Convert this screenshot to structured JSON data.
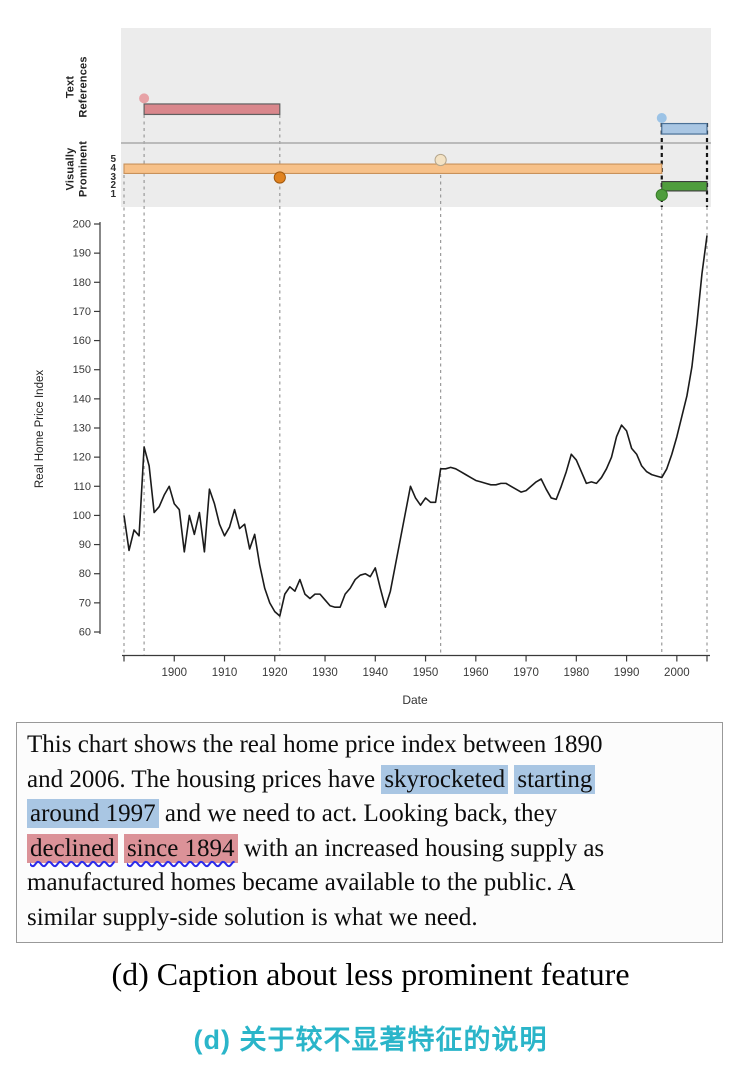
{
  "figure": {
    "panel": {
      "row1_label_line1": "Text",
      "row1_label_line2": "References",
      "row2_label_line1": "Visually",
      "row2_label_line2": "Prominent",
      "rank_labels": [
        "5",
        "4",
        "3",
        "2",
        "1"
      ]
    },
    "caption_en": "(d) Caption about less prominent feature",
    "caption_zh": "(d) 关于较不显著特征的说明"
  },
  "chart_data": {
    "type": "line",
    "title": "",
    "xlabel": "Date",
    "ylabel": "Real Home Price Index",
    "xlim": [
      1890,
      2006
    ],
    "ylim": [
      60,
      200
    ],
    "xticks": [
      1900,
      1910,
      1920,
      1930,
      1940,
      1950,
      1960,
      1970,
      1980,
      1990,
      2000
    ],
    "yticks": [
      60,
      70,
      80,
      90,
      100,
      110,
      120,
      130,
      140,
      150,
      160,
      170,
      180,
      190,
      200
    ],
    "grid": false,
    "series": [
      {
        "name": "Real Home Price Index",
        "x_start": 1890,
        "x_end": 2006,
        "values": [
          100,
          88,
          95,
          93,
          123.5,
          117,
          101,
          103,
          107,
          110,
          104,
          102,
          87.5,
          100,
          93.5,
          101,
          87.5,
          109,
          104,
          97,
          93,
          96,
          102,
          95.5,
          97,
          88.5,
          93.5,
          83,
          75,
          70,
          67,
          65.5,
          73,
          75.5,
          74,
          78,
          73,
          71.5,
          73,
          73,
          71,
          69,
          68.5,
          68.5,
          73,
          75,
          78,
          79.5,
          80,
          79,
          82,
          75,
          68.5,
          74,
          83,
          92,
          101,
          110,
          106,
          103.5,
          106,
          104.5,
          104.5,
          116,
          116,
          116.5,
          116,
          115,
          114,
          113,
          112,
          111.5,
          111,
          110.5,
          110.5,
          111,
          111,
          110,
          109,
          108,
          108.5,
          110,
          111.5,
          112.5,
          109,
          106,
          105.5,
          110,
          115,
          121,
          119,
          115,
          111,
          111.5,
          111,
          113,
          116,
          120,
          127,
          131,
          129,
          123,
          121,
          117,
          115,
          114,
          113.5,
          113,
          116,
          121,
          127,
          134,
          141,
          151,
          166,
          183,
          196
        ]
      }
    ],
    "guides": {
      "gray": [
        1890,
        1894,
        1921,
        1953
      ],
      "black": [
        1997,
        2006
      ]
    },
    "annotations": {
      "text_references": [
        {
          "color": "pink",
          "start": 1894,
          "end": 1921
        },
        {
          "color": "blue",
          "start": 1997,
          "end": 2006
        }
      ],
      "visually_prominent": {
        "intervals": [
          {
            "rank": 4,
            "color": "orange",
            "start": 1890,
            "end": 1997
          },
          {
            "rank": 2,
            "color": "green",
            "start": 1997,
            "end": 2006
          }
        ],
        "points": [
          {
            "rank": 5,
            "color": "cream",
            "year": 1953
          },
          {
            "rank": 3,
            "color": "orange_dark",
            "year": 1921
          },
          {
            "rank": 1,
            "color": "green",
            "year": 1997
          }
        ]
      }
    }
  },
  "caption_box": {
    "lines": [
      [
        {
          "t": "This chart shows the real home price index between 1890"
        }
      ],
      [
        {
          "t": "and 2006. The housing prices have "
        },
        {
          "t": "skyrocketed",
          "h": "blue"
        },
        {
          "t": " "
        },
        {
          "t": "starting",
          "h": "blue"
        }
      ],
      [
        {
          "t": "around 1997",
          "h": "blue"
        },
        {
          "t": " and we need to act. Looking back, they"
        }
      ],
      [
        {
          "t": "declined",
          "h": "pink"
        },
        {
          "t": " "
        },
        {
          "t": "since 1894",
          "h": "pink"
        },
        {
          "t": " with an increased housing supply as"
        }
      ],
      [
        {
          "t": "manufactured homes became available to the public. A"
        }
      ],
      [
        {
          "t": "similar supply-side solution is what we need."
        }
      ]
    ]
  },
  "colors": {
    "pink_fill": "#d9878c",
    "pink_dot": "#e7a2a6",
    "pink_border": "#606060",
    "blue_fill": "#a9c6e3",
    "blue_dot": "#9cc3e6",
    "blue_border": "#4a7096",
    "orange_fill": "#f7c189",
    "orange_border": "#c8915a",
    "orange_dark": "#e0821f",
    "orange_dark_border": "#a2590e",
    "cream_fill": "#f3e2c4",
    "cream_border": "#b5a68c",
    "green_fill": "#4f9d3d",
    "green_border": "#3c3c3c",
    "green_dot_border": "#377d28",
    "line": "#1b1b1b",
    "guide_gray": "#9a9a9a",
    "guide_black": "#141414",
    "panel_bg": "#ececec",
    "separator": "#a9a9a9",
    "axis": "#3a3a3a",
    "highlight_blue": "#a9c6e3",
    "highlight_pink": "#db9298",
    "wavy_underline": "#2b2bea",
    "caption_zh": "#2ab5c9"
  }
}
